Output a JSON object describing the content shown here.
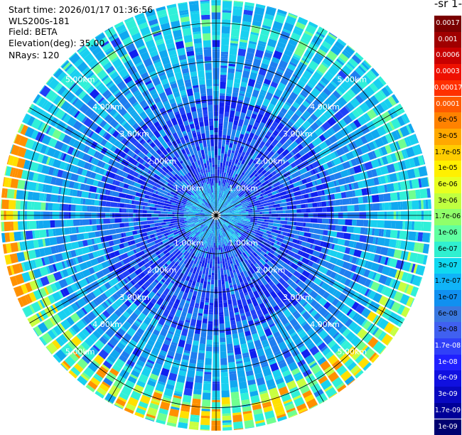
{
  "header": {
    "start_time": "Start time: 2026/01/17 01:36:56",
    "instrument": "WLS200s-181",
    "field": "Field: BETA",
    "elevation": "Elevation(deg): 35.00",
    "nrays": "NRays: 120"
  },
  "chart_data": {
    "type": "heatmap",
    "projection": "polar-ppi",
    "n_rays": 120,
    "ring_labels": [
      "1.00km",
      "2.00km",
      "3.00km",
      "4.00km",
      "5.00km"
    ],
    "ring_ranges_km": [
      1,
      2,
      3,
      4,
      5
    ],
    "max_range_km": 5.6,
    "colorbar": {
      "title": "-1 sr-",
      "labels": [
        "0.0017",
        "0.001",
        "0.0006",
        "0.0003",
        "0.00017",
        "0.0001",
        "6e-05",
        "3e-05",
        "1.7e-05",
        "1e-05",
        "6e-06",
        "3e-06",
        "1.7e-06",
        "1e-06",
        "6e-07",
        "3e-07",
        "1.7e-07",
        "1e-07",
        "6e-08",
        "3e-08",
        "1.7e-08",
        "1e-08",
        "6e-09",
        "3e-09",
        "1.7e-09",
        "1e-09"
      ],
      "colors": [
        "#7a0000",
        "#a00000",
        "#c80000",
        "#ee1000",
        "#ff3000",
        "#ff5a00",
        "#ff8200",
        "#ffa800",
        "#ffcc00",
        "#fff000",
        "#e8ff20",
        "#c0ff40",
        "#90ff6a",
        "#60ffa0",
        "#30f0d0",
        "#10d8f0",
        "#10b4f8",
        "#1090f0",
        "#3a78e0",
        "#4060f0",
        "#3040f8",
        "#2020ff",
        "#1010e0",
        "#0808c0",
        "#000098",
        "#000070"
      ],
      "text_colors": [
        "#ffffff",
        "#ffffff",
        "#ffffff",
        "#ffffff",
        "#ffffff",
        "#ffffff",
        "#000000",
        "#000000",
        "#000000",
        "#000000",
        "#000000",
        "#000000",
        "#000000",
        "#000000",
        "#000000",
        "#000000",
        "#000000",
        "#000000",
        "#000000",
        "#000000",
        "#ffffff",
        "#ffffff",
        "#ffffff",
        "#ffffff",
        "#ffffff",
        "#ffffff"
      ]
    }
  }
}
